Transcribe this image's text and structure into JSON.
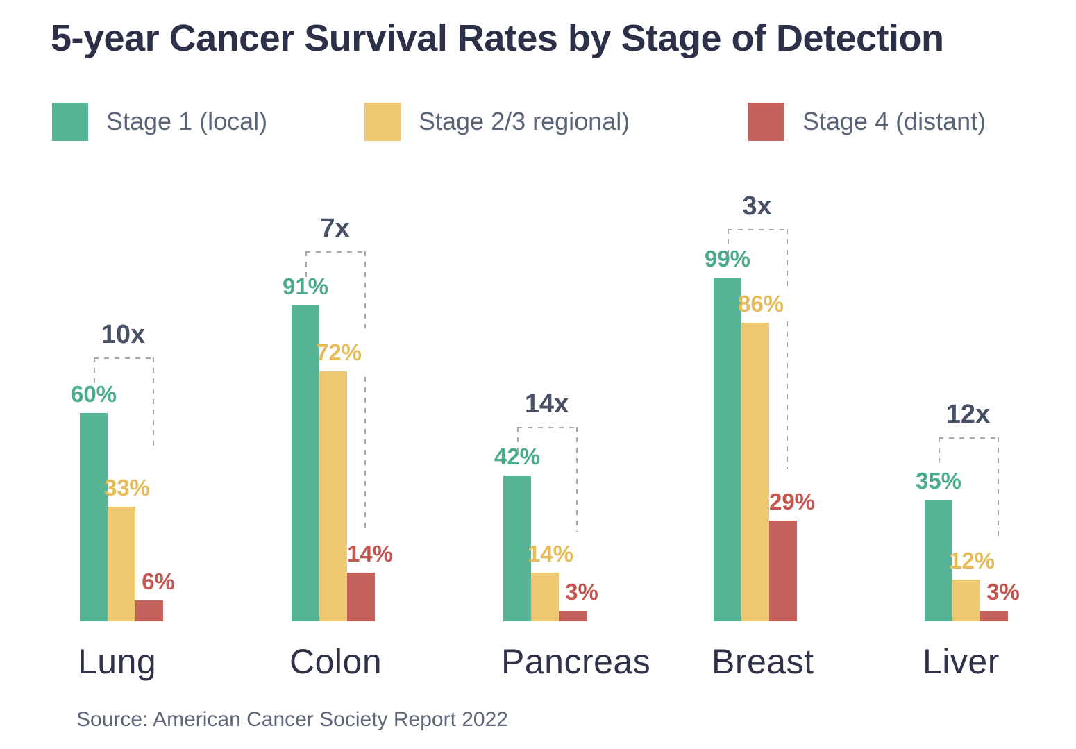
{
  "title": "5-year Cancer Survival Rates by Stage of Detection",
  "source_note": "Source: American Cancer Society Report 2022",
  "legend": {
    "items": [
      {
        "label": "Stage 1 (local)",
        "color": "#57b496"
      },
      {
        "label": "Stage 2/3 regional)",
        "color": "#ecc873"
      },
      {
        "label": "Stage 4 (distant)",
        "color": "#c4615b"
      }
    ]
  },
  "colors": {
    "title_text": "#2c3049",
    "category_text": "#2e3148",
    "legend_text": "#5a6478",
    "multiplier_text": "#485066",
    "source_text": "#5d6779",
    "bracket_dash": "#a8a8a8",
    "series_fill": [
      "#57b496",
      "#ecc873",
      "#c4615b"
    ],
    "series_label": [
      "#49aa8e",
      "#e5ba58",
      "#c5554f"
    ]
  },
  "chart_data": {
    "type": "bar",
    "title": "5-year Cancer Survival Rates by Stage of Detection",
    "categories": [
      "Lung",
      "Colon",
      "Pancreas",
      "Breast",
      "Liver"
    ],
    "series": [
      {
        "name": "Stage 1 (local)",
        "color": "#57b496",
        "values": [
          60,
          91,
          42,
          99,
          35
        ]
      },
      {
        "name": "Stage 2/3 regional)",
        "color": "#ecc873",
        "values": [
          33,
          72,
          14,
          86,
          12
        ]
      },
      {
        "name": "Stage 4 (distant)",
        "color": "#c4615b",
        "values": [
          6,
          14,
          3,
          29,
          3
        ]
      }
    ],
    "value_label_format": "{v}%",
    "annotations": {
      "multipliers": [
        "10x",
        "7x",
        "14x",
        "3x",
        "12x"
      ]
    },
    "ylim": [
      0,
      100
    ],
    "unit": "%",
    "grid": false,
    "axes_visible": false,
    "legend_position": "top",
    "source": "Source: American Cancer Society Report 2022"
  }
}
